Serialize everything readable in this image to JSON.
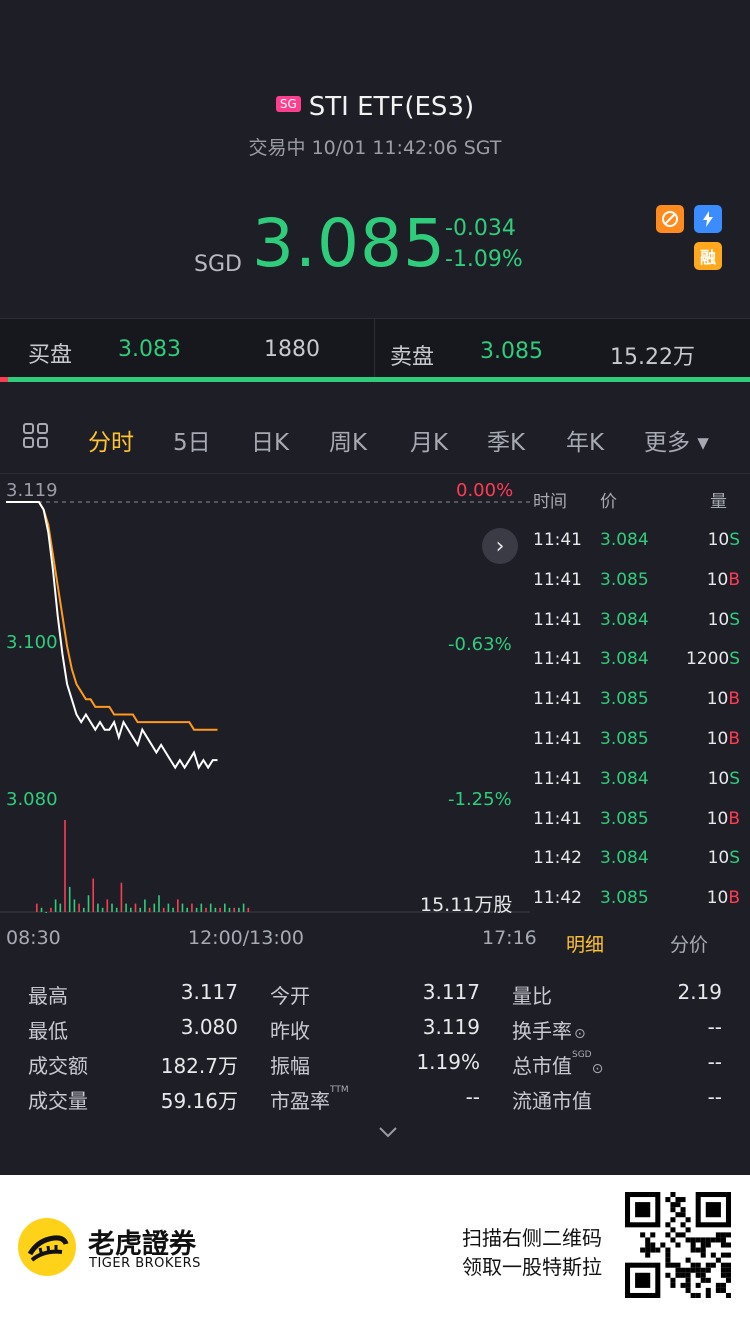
{
  "header": {
    "market_badge": "SG",
    "title": "STI ETF(ES3)",
    "status": "交易中 10/01 11:42:06 SGT"
  },
  "quote": {
    "currency": "SGD",
    "price": "3.085",
    "change": "-0.034",
    "change_pct": "-1.09%",
    "icons": [
      "no-shorting-icon",
      "flash-icon",
      "margin-icon"
    ],
    "margin_label": "融"
  },
  "orderbook": {
    "bid_label": "买盘",
    "bid_price": "3.083",
    "bid_size": "1880",
    "ask_label": "卖盘",
    "ask_price": "3.085",
    "ask_size": "15.22万"
  },
  "tabs": [
    {
      "label": "分时",
      "active": true
    },
    {
      "label": "5日"
    },
    {
      "label": "日K"
    },
    {
      "label": "周K"
    },
    {
      "label": "月K"
    },
    {
      "label": "季K"
    },
    {
      "label": "年K"
    },
    {
      "label": "更多 ▾"
    }
  ],
  "chart_data": {
    "type": "line",
    "y_left_ticks": [
      "3.119",
      "3.100",
      "3.080"
    ],
    "y_right_ticks": [
      "0.00%",
      "-0.63%",
      "-1.25%"
    ],
    "x_ticks": [
      "08:30",
      "12:00/13:00",
      "17:16"
    ],
    "volume_label": "15.11万股",
    "prev_close": 3.119,
    "ylim": [
      3.08,
      3.119
    ],
    "series": [
      {
        "values": [
          3.119,
          3.119,
          3.119,
          3.119,
          3.119,
          3.119,
          3.119,
          3.119,
          3.118,
          3.115,
          3.11,
          3.104,
          3.099,
          3.095,
          3.093,
          3.091,
          3.09,
          3.091,
          3.09,
          3.089,
          3.09,
          3.089,
          3.089,
          3.09,
          3.088,
          3.09,
          3.089,
          3.088,
          3.087,
          3.089,
          3.088,
          3.087,
          3.086,
          3.087,
          3.086,
          3.085,
          3.084,
          3.085,
          3.084,
          3.085,
          3.086,
          3.084,
          3.085,
          3.084,
          3.085,
          3.085
        ]
      },
      {
        "values": [
          3.119,
          3.119,
          3.119,
          3.119,
          3.119,
          3.119,
          3.119,
          3.119,
          3.118,
          3.116,
          3.112,
          3.108,
          3.104,
          3.1,
          3.097,
          3.095,
          3.094,
          3.093,
          3.093,
          3.092,
          3.092,
          3.092,
          3.092,
          3.091,
          3.091,
          3.091,
          3.091,
          3.091,
          3.09,
          3.09,
          3.09,
          3.09,
          3.09,
          3.09,
          3.09,
          3.09,
          3.09,
          3.09,
          3.09,
          3.09,
          3.089,
          3.089,
          3.089,
          3.089,
          3.089,
          3.089
        ]
      }
    ],
    "volumes": [
      2,
      1,
      0,
      1,
      3,
      2,
      22,
      6,
      3,
      2,
      1,
      4,
      8,
      2,
      1,
      3,
      2,
      1,
      7,
      2,
      1,
      2,
      1,
      3,
      1,
      2,
      4,
      1,
      2,
      1,
      3,
      2,
      1,
      2,
      1,
      2,
      1,
      2,
      1,
      1,
      2,
      1,
      1,
      1,
      2,
      1
    ]
  },
  "trades": {
    "headers": [
      "时间",
      "价",
      "量"
    ],
    "rows": [
      {
        "time": "11:41",
        "price": "3.084",
        "vol": "10",
        "side": "S"
      },
      {
        "time": "11:41",
        "price": "3.085",
        "vol": "10",
        "side": "B"
      },
      {
        "time": "11:41",
        "price": "3.084",
        "vol": "10",
        "side": "S"
      },
      {
        "time": "11:41",
        "price": "3.084",
        "vol": "1200",
        "side": "S"
      },
      {
        "time": "11:41",
        "price": "3.085",
        "vol": "10",
        "side": "B"
      },
      {
        "time": "11:41",
        "price": "3.085",
        "vol": "10",
        "side": "B"
      },
      {
        "time": "11:41",
        "price": "3.084",
        "vol": "10",
        "side": "S"
      },
      {
        "time": "11:41",
        "price": "3.085",
        "vol": "10",
        "side": "B"
      },
      {
        "time": "11:42",
        "price": "3.084",
        "vol": "10",
        "side": "S"
      },
      {
        "time": "11:42",
        "price": "3.085",
        "vol": "10",
        "side": "B"
      }
    ],
    "tab_detail": "明细",
    "tab_price": "分价"
  },
  "stats": {
    "col1": [
      {
        "label": "最高",
        "value": "3.117"
      },
      {
        "label": "最低",
        "value": "3.080"
      },
      {
        "label": "成交额",
        "value": "182.7万"
      },
      {
        "label": "成交量",
        "value": "59.16万"
      }
    ],
    "col2": [
      {
        "label": "今开",
        "value": "3.117"
      },
      {
        "label": "昨收",
        "value": "3.119"
      },
      {
        "label": "振幅",
        "value": "1.19%"
      },
      {
        "label": "市盈率",
        "value": "--",
        "sup": "TTM"
      }
    ],
    "col3": [
      {
        "label": "量比",
        "value": "2.19"
      },
      {
        "label": "换手率",
        "value": "--"
      },
      {
        "label": "总市值",
        "value": "--",
        "sup": "SGD"
      },
      {
        "label": "流通市值",
        "value": "--"
      }
    ]
  },
  "footer": {
    "brand_cn": "老虎證券",
    "brand_en": "TIGER BROKERS",
    "promo_line1": "扫描右侧二维码",
    "promo_line2": "领取一股特斯拉"
  },
  "colors": {
    "up": "#ff3b54",
    "down": "#2fcc7b",
    "accent": "#ffc42e",
    "avg_line": "#ff9a1e"
  }
}
